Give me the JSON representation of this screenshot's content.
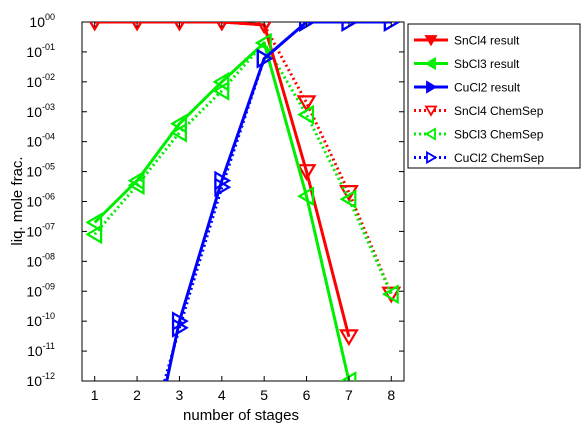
{
  "chart_data": {
    "type": "line",
    "xlabel": "number of stages",
    "ylabel": "liq. mole frac.",
    "xlim": [
      1,
      8
    ],
    "ylim_log10": [
      -12,
      0
    ],
    "yscale": "log",
    "x_ticks": [
      "1",
      "2",
      "3",
      "4",
      "5",
      "6",
      "7",
      "8"
    ],
    "y_ticks": [
      {
        "base": "10",
        "exp": "00"
      },
      {
        "base": "10",
        "exp": "-01"
      },
      {
        "base": "10",
        "exp": "-02"
      },
      {
        "base": "10",
        "exp": "-03"
      },
      {
        "base": "10",
        "exp": "-04"
      },
      {
        "base": "10",
        "exp": "-05"
      },
      {
        "base": "10",
        "exp": "-06"
      },
      {
        "base": "10",
        "exp": "-07"
      },
      {
        "base": "10",
        "exp": "-08"
      },
      {
        "base": "10",
        "exp": "-09"
      },
      {
        "base": "10",
        "exp": "-10"
      },
      {
        "base": "10",
        "exp": "-11"
      },
      {
        "base": "10",
        "exp": "-12"
      }
    ],
    "grid": false,
    "legend_position": "right",
    "series": [
      {
        "name": "SnCl4 result",
        "color": "#ff0000",
        "style": "solid",
        "marker": "triangle-down",
        "filled": true,
        "x": [
          1,
          2,
          3,
          4,
          5,
          6,
          7
        ],
        "y": [
          1.0,
          1.0,
          1.0,
          1.0,
          0.8,
          1e-05,
          3e-11
        ]
      },
      {
        "name": "SbCl3 result",
        "color": "#00ee00",
        "style": "solid",
        "marker": "triangle-left",
        "filled": true,
        "x": [
          1,
          2,
          3,
          4,
          5,
          6,
          7
        ],
        "y": [
          2e-07,
          5e-06,
          0.0004,
          0.01,
          0.2,
          1.5e-06,
          1e-12
        ]
      },
      {
        "name": "CuCl2 result",
        "color": "#0000ff",
        "style": "solid",
        "marker": "triangle-right",
        "filled": true,
        "x": [
          2.7,
          3,
          4,
          5,
          6,
          7,
          8
        ],
        "y": [
          1e-12,
          1e-10,
          5e-06,
          0.06,
          1.0,
          1.0,
          1.0
        ]
      },
      {
        "name": "SnCl4 ChemSep",
        "color": "#ff0000",
        "style": "dotted",
        "marker": "triangle-down",
        "filled": false,
        "x": [
          1,
          2,
          3,
          4,
          5,
          6,
          7,
          8
        ],
        "y": [
          1.0,
          1.0,
          1.0,
          1.0,
          0.8,
          0.002,
          2e-06,
          8e-10
        ]
      },
      {
        "name": "SbCl3 ChemSep",
        "color": "#00ee00",
        "style": "dotted",
        "marker": "triangle-left",
        "filled": false,
        "x": [
          1,
          2,
          3,
          4,
          5,
          6,
          7,
          8
        ],
        "y": [
          8e-08,
          3.5e-06,
          0.0002,
          0.005,
          0.2,
          0.0008,
          1.2e-06,
          8e-10
        ]
      },
      {
        "name": "CuCl2 ChemSep",
        "color": "#0000ff",
        "style": "dotted",
        "marker": "triangle-right",
        "filled": false,
        "x": [
          2.65,
          3,
          4,
          5,
          6,
          7,
          8
        ],
        "y": [
          1e-12,
          6e-11,
          3e-06,
          0.06,
          1.0,
          1.0,
          1.0
        ]
      }
    ]
  }
}
